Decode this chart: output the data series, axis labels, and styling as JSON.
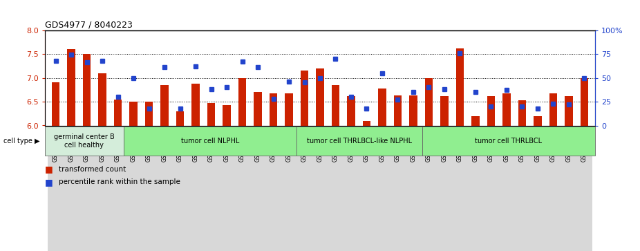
{
  "title": "GDS4977 / 8040223",
  "samples": [
    "GSM1143706",
    "GSM1143707",
    "GSM1143708",
    "GSM1143709",
    "GSM1143710",
    "GSM1143676",
    "GSM1143677",
    "GSM1143678",
    "GSM1143679",
    "GSM1143680",
    "GSM1143681",
    "GSM1143682",
    "GSM1143683",
    "GSM1143684",
    "GSM1143685",
    "GSM1143686",
    "GSM1143687",
    "GSM1143688",
    "GSM1143689",
    "GSM1143690",
    "GSM1143691",
    "GSM1143692",
    "GSM1143693",
    "GSM1143694",
    "GSM1143695",
    "GSM1143696",
    "GSM1143697",
    "GSM1143698",
    "GSM1143699",
    "GSM1143700",
    "GSM1143701",
    "GSM1143702",
    "GSM1143703",
    "GSM1143704",
    "GSM1143705"
  ],
  "red_values": [
    6.9,
    7.6,
    7.5,
    7.1,
    6.55,
    6.5,
    6.5,
    6.85,
    6.3,
    6.87,
    6.47,
    6.43,
    7.0,
    6.7,
    6.67,
    6.67,
    7.15,
    7.2,
    6.85,
    6.62,
    6.1,
    6.77,
    6.63,
    6.63,
    7.0,
    6.62,
    7.62,
    6.2,
    6.62,
    6.67,
    6.53,
    6.2,
    6.67,
    6.62,
    7.0
  ],
  "blue_percentiles": [
    68,
    74,
    66,
    68,
    30,
    50,
    18,
    61,
    18,
    62,
    38,
    40,
    67,
    61,
    28,
    46,
    45,
    50,
    70,
    30,
    18,
    55,
    27,
    35,
    40,
    38,
    76,
    35,
    20,
    37,
    20,
    18,
    23,
    22,
    50
  ],
  "cell_type_groups": [
    {
      "label": "germinal center B\ncell healthy",
      "start": 0,
      "end": 5,
      "color": "#d4edda"
    },
    {
      "label": "tumor cell NLPHL",
      "start": 5,
      "end": 16,
      "color": "#90ee90"
    },
    {
      "label": "tumor cell THRLBCL-like NLPHL",
      "start": 16,
      "end": 24,
      "color": "#90ee90"
    },
    {
      "label": "tumor cell THRLBCL",
      "start": 24,
      "end": 35,
      "color": "#90ee90"
    }
  ],
  "ylim_left": [
    6.0,
    8.0
  ],
  "ylim_right": [
    0,
    100
  ],
  "red_color": "#cc2200",
  "blue_color": "#2244cc",
  "bar_width": 0.5,
  "base_value": 6.0,
  "xtick_bg": "#d8d8d8",
  "plot_bg": "#ffffff"
}
